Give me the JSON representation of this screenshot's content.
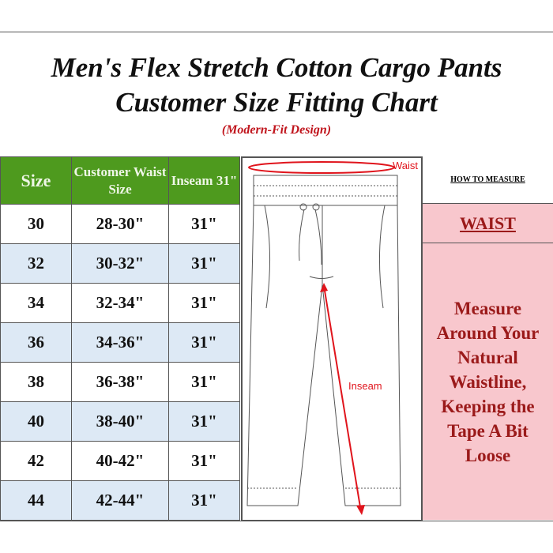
{
  "title_line1": "Men's Flex Stretch Cotton Cargo Pants",
  "title_line2": "Customer Size Fitting Chart",
  "subtitle": "(Modern-Fit Design)",
  "table": {
    "headers": [
      "Size",
      "Customer Waist Size",
      "Inseam 31\""
    ],
    "rows": [
      [
        "30",
        "28-30\"",
        "31\""
      ],
      [
        "32",
        "30-32\"",
        "31\""
      ],
      [
        "34",
        "32-34\"",
        "31\""
      ],
      [
        "36",
        "34-36\"",
        "31\""
      ],
      [
        "38",
        "36-38\"",
        "31\""
      ],
      [
        "40",
        "38-40\"",
        "31\""
      ],
      [
        "42",
        "40-42\"",
        "31\""
      ],
      [
        "44",
        "42-44\"",
        "31\""
      ]
    ]
  },
  "diagram": {
    "waist_label": "Waist",
    "inseam_label": "Inseam"
  },
  "measure": {
    "heading": "HOW TO MEASURE",
    "section": "WAIST",
    "instructions": "Measure Around Your Natural Waistline, Keeping the Tape A Bit Loose"
  },
  "colors": {
    "header_green": "#4e9a1e",
    "row_blue": "#dde9f5",
    "pink": "#f8c7cd",
    "dark_red": "#9b1a1a",
    "red": "#e0141c"
  }
}
